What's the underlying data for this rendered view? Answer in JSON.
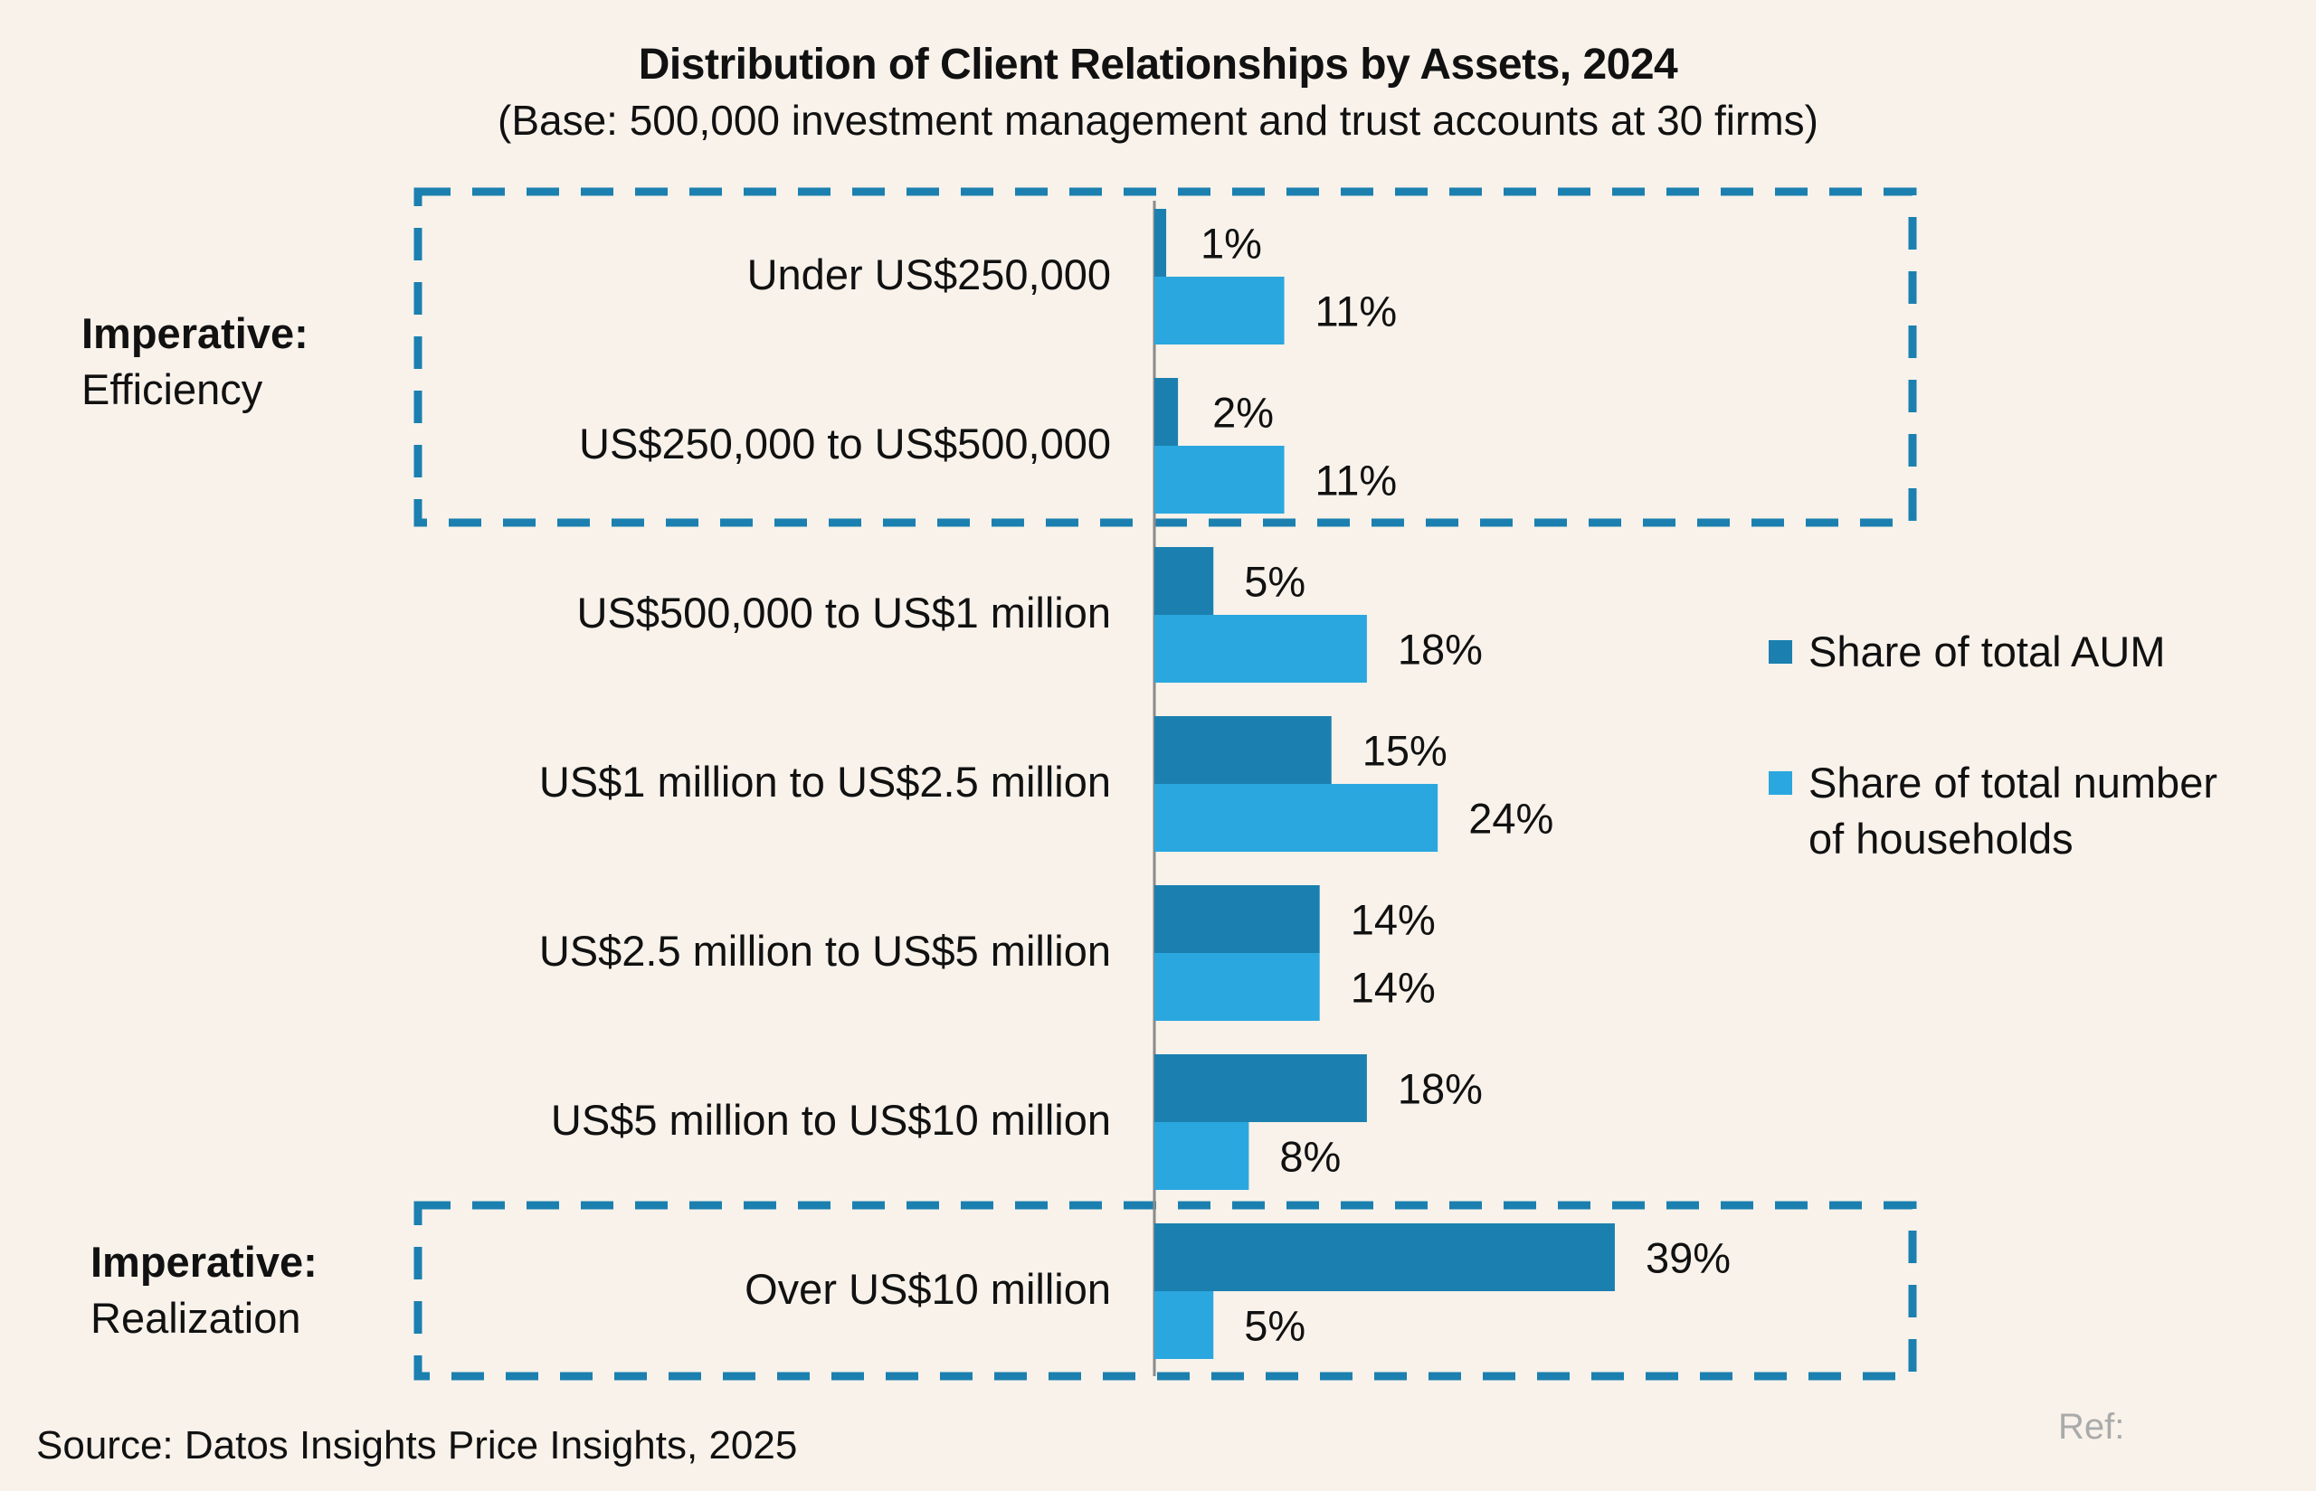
{
  "chart_data": {
    "type": "bar",
    "orientation": "horizontal",
    "title": "Distribution of Client Relationships by Assets, 2024",
    "subtitle": "(Base: 500,000 investment management and trust accounts at 30 firms)",
    "categories": [
      "Under US$250,000",
      "US$250,000 to US$500,000",
      "US$500,000 to US$1 million",
      "US$1 million to US$2.5 million",
      "US$2.5 million to US$5 million",
      "US$5 million to US$10 million",
      "Over US$10 million"
    ],
    "series": [
      {
        "name": "Share of total AUM",
        "color": "#1b80af",
        "values": [
          1,
          2,
          5,
          15,
          14,
          18,
          39
        ],
        "labels": [
          "1%",
          "2%",
          "5%",
          "15%",
          "14%",
          "18%",
          "39%"
        ]
      },
      {
        "name": "Share of total number of households",
        "color": "#2ba7df",
        "values": [
          11,
          11,
          18,
          24,
          14,
          8,
          5
        ],
        "labels": [
          "11%",
          "11%",
          "18%",
          "24%",
          "14%",
          "8%",
          "5%"
        ]
      }
    ],
    "xlabel": "",
    "ylabel": "",
    "xlim": [
      0,
      40
    ],
    "grid": false,
    "legend_position": "right",
    "annotations": [
      {
        "group": "efficiency",
        "bold": "Imperative:",
        "text": "Efficiency",
        "categories": [
          0,
          1
        ]
      },
      {
        "group": "realization",
        "bold": "Imperative:",
        "text": "Realization",
        "categories": [
          6
        ]
      }
    ]
  },
  "legend": {
    "aum": "Share of total AUM",
    "households_line1": "Share of total number",
    "households_line2": "of households"
  },
  "imperatives": {
    "efficiency": {
      "bold": "Imperative:",
      "text": "Efficiency"
    },
    "realization": {
      "bold": "Imperative:",
      "text": "Realization"
    }
  },
  "colors": {
    "aum": "#1b80af",
    "households": "#2ba7df",
    "box": "#1b80af",
    "background": "#f8f2eb"
  },
  "footer": {
    "source": "Source: Datos Insights Price Insights, 2025",
    "ref": "Ref:"
  }
}
